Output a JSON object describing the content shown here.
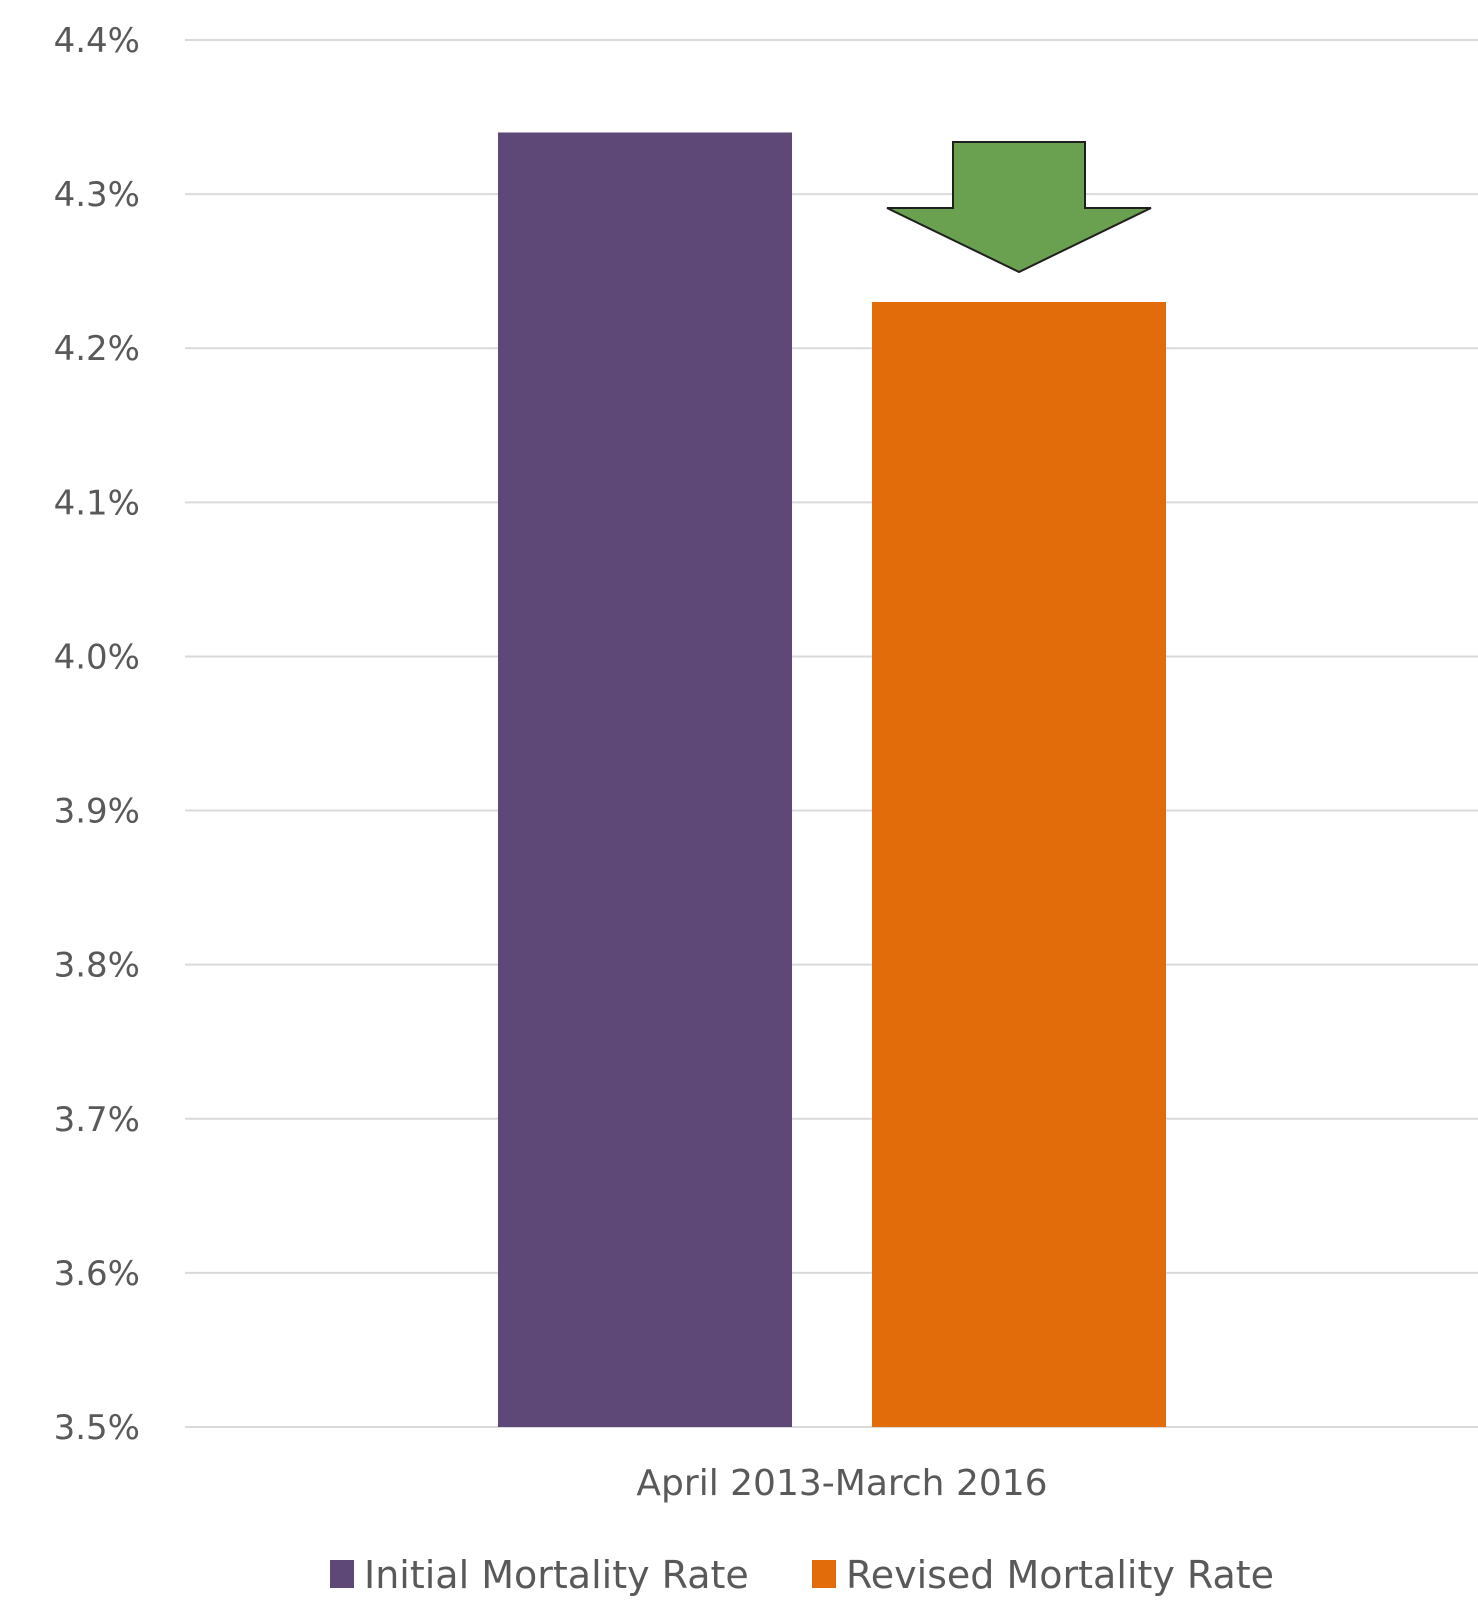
{
  "chart_data": {
    "type": "bar",
    "title": "",
    "xlabel": "",
    "ylabel": "",
    "categories": [
      "April 2013-March 2016"
    ],
    "series": [
      {
        "name": "Initial Mortality Rate",
        "values": [
          4.34
        ],
        "color": "#5e4878"
      },
      {
        "name": "Revised Mortality Rate",
        "values": [
          4.23
        ],
        "color": "#e36c0a"
      }
    ],
    "ylim": [
      3.5,
      4.4
    ],
    "yticks": [
      "3.5%",
      "3.6%",
      "3.7%",
      "3.8%",
      "3.9%",
      "4.0%",
      "4.1%",
      "4.2%",
      "4.3%",
      "4.4%"
    ],
    "grid": true,
    "legend_position": "bottom",
    "annotation": {
      "type": "down-arrow",
      "color": "#6aa150",
      "target_series": "Revised Mortality Rate"
    }
  }
}
